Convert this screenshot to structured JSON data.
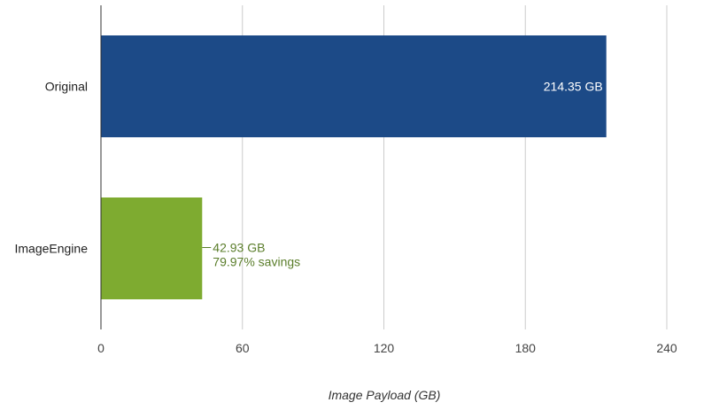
{
  "chart_data": {
    "type": "bar",
    "orientation": "horizontal",
    "categories": [
      "Original",
      "ImageEngine"
    ],
    "values": [
      214.35,
      42.93
    ],
    "value_labels": [
      "214.35 GB",
      "42.93 GB"
    ],
    "annotations": [
      "",
      "79.97% savings"
    ],
    "bar_colors": [
      "#1c4a87",
      "#7eab30"
    ],
    "value_label_colors": [
      "#ffffff",
      "#5a7d2a"
    ],
    "xlabel": "Image Payload (GB)",
    "ylabel": "",
    "xlim": [
      0,
      240
    ],
    "xticks": [
      0,
      60,
      120,
      180,
      240
    ],
    "xtick_labels": [
      "0",
      "60",
      "120",
      "180",
      "240"
    ],
    "grid": true,
    "legend": "none"
  }
}
